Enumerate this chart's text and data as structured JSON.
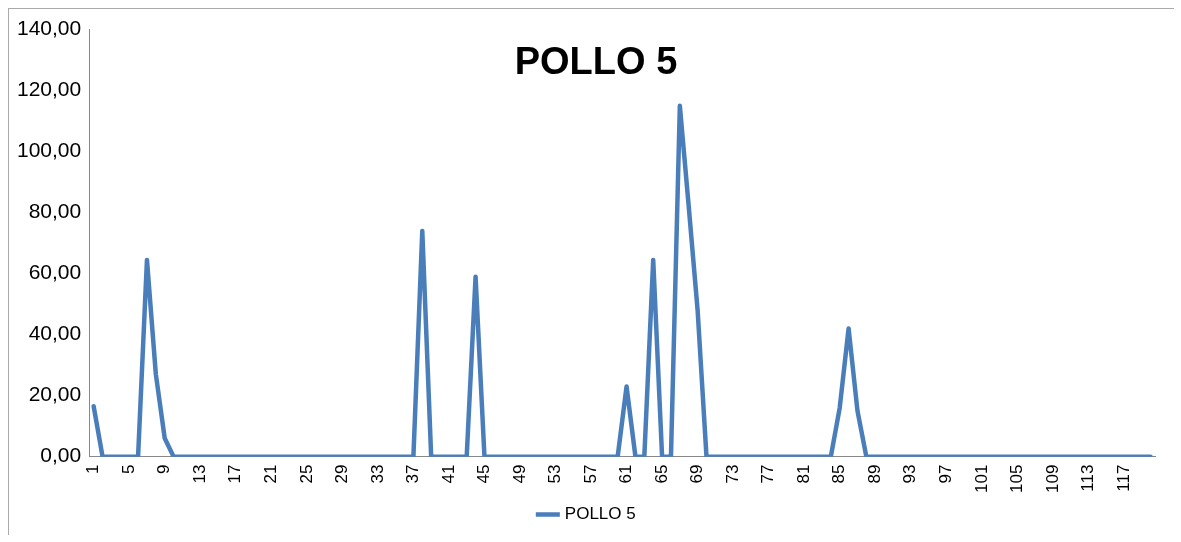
{
  "chart_data": {
    "type": "line",
    "title": "POLLO 5",
    "categories": [
      "1",
      null,
      null,
      null,
      "5",
      null,
      null,
      null,
      "9",
      null,
      null,
      null,
      "13",
      null,
      null,
      null,
      "17",
      null,
      null,
      null,
      "21",
      null,
      null,
      null,
      "25",
      null,
      null,
      null,
      "29",
      null,
      null,
      null,
      "33",
      null,
      null,
      null,
      "37",
      null,
      null,
      null,
      "41",
      null,
      null,
      null,
      "45",
      null,
      null,
      null,
      "49",
      null,
      null,
      null,
      "53",
      null,
      null,
      null,
      "57",
      null,
      null,
      null,
      "61",
      null,
      null,
      null,
      "65",
      null,
      null,
      null,
      "69",
      null,
      null,
      null,
      "73",
      null,
      null,
      null,
      "77",
      null,
      null,
      null,
      "81",
      null,
      null,
      null,
      "85",
      null,
      null,
      null,
      "89",
      null,
      null,
      null,
      "93",
      null,
      null,
      null,
      "97",
      null,
      null,
      null,
      "101",
      null,
      null,
      null,
      "105",
      null,
      null,
      null,
      "109",
      null,
      null,
      null,
      "113",
      null,
      null,
      null,
      "117",
      null,
      null,
      null
    ],
    "series": [
      {
        "name": "POLLO 5",
        "color": "#4a7ebb",
        "values": [
          16.5,
          0,
          0,
          0,
          0,
          0,
          64.5,
          27,
          6,
          0,
          0,
          0,
          0,
          0,
          0,
          0,
          0,
          0,
          0,
          0,
          0,
          0,
          0,
          0,
          0,
          0,
          0,
          0,
          0,
          0,
          0,
          0,
          0,
          0,
          0,
          0,
          0,
          74,
          0,
          0,
          0,
          0,
          0,
          59,
          0,
          0,
          0,
          0,
          0,
          0,
          0,
          0,
          0,
          0,
          0,
          0,
          0,
          0,
          0,
          0,
          23,
          0,
          0,
          64.5,
          0,
          0,
          115,
          82,
          48,
          0,
          0,
          0,
          0,
          0,
          0,
          0,
          0,
          0,
          0,
          0,
          0,
          0,
          0,
          0,
          16,
          42,
          15,
          0,
          0,
          0,
          0,
          0,
          0,
          0,
          0,
          0,
          0,
          0,
          0,
          0,
          0,
          0,
          0,
          0,
          0,
          0,
          0,
          0,
          0,
          0,
          0,
          0,
          0,
          0,
          0,
          0,
          0,
          0,
          0,
          0
        ]
      }
    ],
    "ylim": [
      0,
      140
    ],
    "yticks": [
      {
        "value": 0,
        "label": "0,00"
      },
      {
        "value": 20,
        "label": "20,00"
      },
      {
        "value": 40,
        "label": "40,00"
      },
      {
        "value": 60,
        "label": "60,00"
      },
      {
        "value": 80,
        "label": "80,00"
      },
      {
        "value": 100,
        "label": "100,00"
      },
      {
        "value": 120,
        "label": "120,00"
      },
      {
        "value": 140,
        "label": "140,00"
      }
    ],
    "grid": false,
    "legend": "bottom",
    "marker": "none",
    "line_style": "solid"
  }
}
